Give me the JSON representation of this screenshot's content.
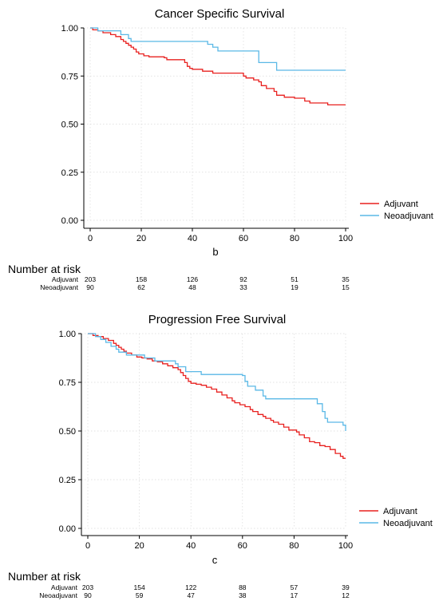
{
  "chart_data": [
    {
      "type": "line",
      "title": "Cancer Specific Survival",
      "panel_label": "b",
      "xlabel": "",
      "ylabel": "",
      "xlim": [
        0,
        100
      ],
      "ylim": [
        0,
        1
      ],
      "x_ticks": [
        "0",
        "20",
        "40",
        "60",
        "80",
        "100"
      ],
      "y_ticks": [
        "0.00",
        "0.25",
        "0.50",
        "0.75",
        "1.00"
      ],
      "grid": true,
      "legend_position": "right",
      "series": [
        {
          "name": "Adjuvant",
          "color": "#e8201f",
          "step": true,
          "points": [
            [
              0,
              1.0
            ],
            [
              1,
              0.99
            ],
            [
              3,
              0.985
            ],
            [
              5,
              0.975
            ],
            [
              8,
              0.965
            ],
            [
              10,
              0.955
            ],
            [
              12,
              0.94
            ],
            [
              13,
              0.93
            ],
            [
              14,
              0.92
            ],
            [
              15,
              0.91
            ],
            [
              16,
              0.9
            ],
            [
              17,
              0.89
            ],
            [
              18,
              0.875
            ],
            [
              19,
              0.865
            ],
            [
              21,
              0.855
            ],
            [
              23,
              0.85
            ],
            [
              29,
              0.845
            ],
            [
              30,
              0.835
            ],
            [
              37,
              0.82
            ],
            [
              38,
              0.8
            ],
            [
              39,
              0.79
            ],
            [
              40,
              0.785
            ],
            [
              44,
              0.775
            ],
            [
              48,
              0.765
            ],
            [
              60,
              0.75
            ],
            [
              61,
              0.74
            ],
            [
              64,
              0.73
            ],
            [
              66,
              0.72
            ],
            [
              67,
              0.7
            ],
            [
              69,
              0.685
            ],
            [
              72,
              0.67
            ],
            [
              73,
              0.65
            ],
            [
              76,
              0.64
            ],
            [
              80,
              0.635
            ],
            [
              84,
              0.62
            ],
            [
              86,
              0.61
            ],
            [
              93,
              0.6
            ],
            [
              100,
              0.6
            ]
          ]
        },
        {
          "name": "Neoadjuvant",
          "color": "#5ab8e6",
          "step": true,
          "points": [
            [
              0,
              1.0
            ],
            [
              3,
              0.985
            ],
            [
              12,
              0.965
            ],
            [
              15,
              0.945
            ],
            [
              16,
              0.93
            ],
            [
              46,
              0.915
            ],
            [
              48,
              0.9
            ],
            [
              50,
              0.88
            ],
            [
              66,
              0.82
            ],
            [
              73,
              0.78
            ],
            [
              100,
              0.78
            ]
          ]
        }
      ],
      "risk_table": {
        "heading": "Number at risk",
        "time_points": [
          "0",
          "20",
          "40",
          "60",
          "80",
          "100"
        ],
        "rows": [
          {
            "label": "Adjuvant",
            "values": [
              "203",
              "158",
              "126",
              "92",
              "51",
              "35"
            ]
          },
          {
            "label": "Neoadjuvant",
            "values": [
              "90",
              "62",
              "48",
              "33",
              "19",
              "15"
            ]
          }
        ]
      }
    },
    {
      "type": "line",
      "title": "Progression Free Survival",
      "panel_label": "c",
      "xlabel": "",
      "ylabel": "",
      "xlim": [
        0,
        100
      ],
      "ylim": [
        0,
        1
      ],
      "x_ticks": [
        "0",
        "20",
        "40",
        "60",
        "80",
        "100"
      ],
      "y_ticks": [
        "0.00",
        "0.25",
        "0.50",
        "0.75",
        "1.00"
      ],
      "grid": true,
      "legend_position": "right",
      "series": [
        {
          "name": "Adjuvant",
          "color": "#e8201f",
          "step": true,
          "points": [
            [
              0,
              1.0
            ],
            [
              2,
              0.99
            ],
            [
              4,
              0.985
            ],
            [
              6,
              0.975
            ],
            [
              8,
              0.965
            ],
            [
              10,
              0.95
            ],
            [
              11,
              0.94
            ],
            [
              12,
              0.93
            ],
            [
              13,
              0.92
            ],
            [
              14,
              0.91
            ],
            [
              15,
              0.9
            ],
            [
              17,
              0.89
            ],
            [
              19,
              0.88
            ],
            [
              21,
              0.875
            ],
            [
              23,
              0.87
            ],
            [
              25,
              0.86
            ],
            [
              27,
              0.855
            ],
            [
              29,
              0.845
            ],
            [
              31,
              0.835
            ],
            [
              33,
              0.825
            ],
            [
              35,
              0.815
            ],
            [
              36,
              0.8
            ],
            [
              37,
              0.785
            ],
            [
              38,
              0.77
            ],
            [
              39,
              0.755
            ],
            [
              40,
              0.745
            ],
            [
              42,
              0.74
            ],
            [
              44,
              0.735
            ],
            [
              46,
              0.725
            ],
            [
              48,
              0.715
            ],
            [
              50,
              0.7
            ],
            [
              52,
              0.685
            ],
            [
              54,
              0.67
            ],
            [
              56,
              0.655
            ],
            [
              57,
              0.645
            ],
            [
              59,
              0.635
            ],
            [
              61,
              0.625
            ],
            [
              63,
              0.61
            ],
            [
              64,
              0.6
            ],
            [
              66,
              0.585
            ],
            [
              68,
              0.575
            ],
            [
              69,
              0.565
            ],
            [
              71,
              0.555
            ],
            [
              72,
              0.545
            ],
            [
              74,
              0.535
            ],
            [
              76,
              0.52
            ],
            [
              78,
              0.505
            ],
            [
              81,
              0.495
            ],
            [
              82,
              0.48
            ],
            [
              84,
              0.465
            ],
            [
              86,
              0.445
            ],
            [
              88,
              0.44
            ],
            [
              90,
              0.425
            ],
            [
              92,
              0.42
            ],
            [
              94,
              0.405
            ],
            [
              96,
              0.385
            ],
            [
              98,
              0.37
            ],
            [
              99,
              0.36
            ],
            [
              100,
              0.36
            ]
          ]
        },
        {
          "name": "Neoadjuvant",
          "color": "#5ab8e6",
          "step": true,
          "points": [
            [
              0,
              1.0
            ],
            [
              3,
              0.985
            ],
            [
              5,
              0.97
            ],
            [
              7,
              0.955
            ],
            [
              9,
              0.935
            ],
            [
              11,
              0.92
            ],
            [
              12,
              0.905
            ],
            [
              15,
              0.89
            ],
            [
              22,
              0.875
            ],
            [
              26,
              0.86
            ],
            [
              34,
              0.845
            ],
            [
              35,
              0.83
            ],
            [
              38,
              0.805
            ],
            [
              44,
              0.79
            ],
            [
              60,
              0.785
            ],
            [
              61,
              0.755
            ],
            [
              62,
              0.73
            ],
            [
              65,
              0.71
            ],
            [
              68,
              0.68
            ],
            [
              69,
              0.665
            ],
            [
              89,
              0.64
            ],
            [
              91,
              0.6
            ],
            [
              92,
              0.565
            ],
            [
              93,
              0.545
            ],
            [
              99,
              0.53
            ],
            [
              100,
              0.5
            ]
          ]
        }
      ],
      "risk_table": {
        "heading": "Number at risk",
        "time_points": [
          "0",
          "20",
          "40",
          "60",
          "80",
          "100"
        ],
        "rows": [
          {
            "label": "Adjuvant",
            "values": [
              "203",
              "154",
              "122",
              "88",
              "57",
              "39"
            ]
          },
          {
            "label": "Neoadjuvant",
            "values": [
              "90",
              "59",
              "47",
              "38",
              "17",
              "12"
            ]
          }
        ]
      }
    }
  ]
}
